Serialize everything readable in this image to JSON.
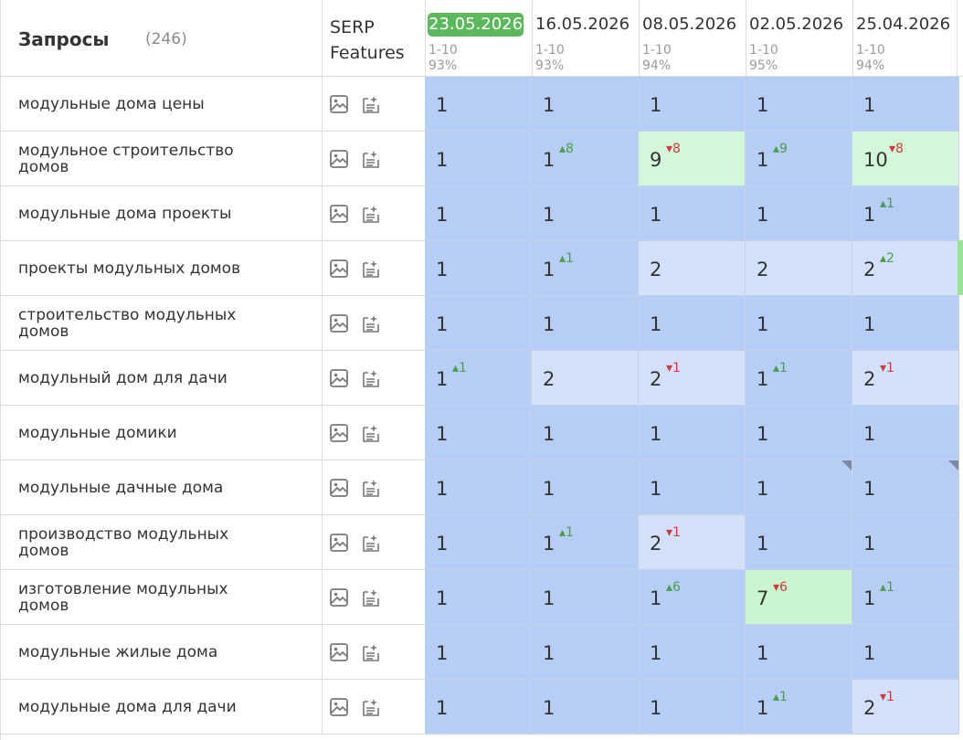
{
  "header": {
    "queries_label": "Запросы",
    "queries_count": "(246)",
    "serp_label_line1": "SERP",
    "serp_label_line2": "Features"
  },
  "dates": [
    {
      "label": "23.05.2026",
      "range": "1-10",
      "pct": "93%",
      "active": true
    },
    {
      "label": "16.05.2026",
      "range": "1-10",
      "pct": "93%",
      "active": false
    },
    {
      "label": "08.05.2026",
      "range": "1-10",
      "pct": "94%",
      "active": false
    },
    {
      "label": "02.05.2026",
      "range": "1-10",
      "pct": "95%",
      "active": false
    },
    {
      "label": "25.04.2026",
      "range": "1-10",
      "pct": "94%",
      "active": false
    }
  ],
  "serp_icons": [
    "image-icon",
    "featured-snippet-icon"
  ],
  "colors": {
    "pos1": "#b6cdf6",
    "pos1_alt": "#b0c6f2",
    "pos2": "#d2e0fa",
    "top10_green": "#d4f7d9",
    "top10_green_alt": "#c9f5d1",
    "up": "#4a9e4a",
    "down": "#d23a3a",
    "active_date": "#5cb85c"
  },
  "rows": [
    {
      "query": "модульные дома цены",
      "cells": [
        {
          "pos": "1",
          "delta": "",
          "dir": "",
          "bg": "pos1"
        },
        {
          "pos": "1",
          "delta": "",
          "dir": "",
          "bg": "pos1"
        },
        {
          "pos": "1",
          "delta": "",
          "dir": "",
          "bg": "pos1"
        },
        {
          "pos": "1",
          "delta": "",
          "dir": "",
          "bg": "pos1"
        },
        {
          "pos": "1",
          "delta": "",
          "dir": "",
          "bg": "pos1"
        }
      ]
    },
    {
      "query": "модульное строительство домов",
      "cells": [
        {
          "pos": "1",
          "delta": "",
          "dir": "",
          "bg": "pos1"
        },
        {
          "pos": "1",
          "delta": "8",
          "dir": "up",
          "bg": "pos1"
        },
        {
          "pos": "9",
          "delta": "8",
          "dir": "down",
          "bg": "top10_green"
        },
        {
          "pos": "1",
          "delta": "9",
          "dir": "up",
          "bg": "pos1"
        },
        {
          "pos": "10",
          "delta": "8",
          "dir": "down",
          "bg": "top10_green"
        }
      ]
    },
    {
      "query": "модульные дома проекты",
      "cells": [
        {
          "pos": "1",
          "delta": "",
          "dir": "",
          "bg": "pos1"
        },
        {
          "pos": "1",
          "delta": "",
          "dir": "",
          "bg": "pos1"
        },
        {
          "pos": "1",
          "delta": "",
          "dir": "",
          "bg": "pos1"
        },
        {
          "pos": "1",
          "delta": "",
          "dir": "",
          "bg": "pos1"
        },
        {
          "pos": "1",
          "delta": "1",
          "dir": "up",
          "bg": "pos1"
        }
      ]
    },
    {
      "query": "проекты модульных домов",
      "cells": [
        {
          "pos": "1",
          "delta": "",
          "dir": "",
          "bg": "pos1"
        },
        {
          "pos": "1",
          "delta": "1",
          "dir": "up",
          "bg": "pos1"
        },
        {
          "pos": "2",
          "delta": "",
          "dir": "",
          "bg": "pos2"
        },
        {
          "pos": "2",
          "delta": "",
          "dir": "",
          "bg": "pos2"
        },
        {
          "pos": "2",
          "delta": "2",
          "dir": "up",
          "bg": "pos2"
        }
      ]
    },
    {
      "query": "строительство модульных домов",
      "cells": [
        {
          "pos": "1",
          "delta": "",
          "dir": "",
          "bg": "pos1"
        },
        {
          "pos": "1",
          "delta": "",
          "dir": "",
          "bg": "pos1"
        },
        {
          "pos": "1",
          "delta": "",
          "dir": "",
          "bg": "pos1"
        },
        {
          "pos": "1",
          "delta": "",
          "dir": "",
          "bg": "pos1"
        },
        {
          "pos": "1",
          "delta": "",
          "dir": "",
          "bg": "pos1"
        }
      ]
    },
    {
      "query": "модульный дом для дачи",
      "cells": [
        {
          "pos": "1",
          "delta": "1",
          "dir": "up",
          "bg": "pos1"
        },
        {
          "pos": "2",
          "delta": "",
          "dir": "",
          "bg": "pos2"
        },
        {
          "pos": "2",
          "delta": "1",
          "dir": "down",
          "bg": "pos2"
        },
        {
          "pos": "1",
          "delta": "1",
          "dir": "up",
          "bg": "pos1"
        },
        {
          "pos": "2",
          "delta": "1",
          "dir": "down",
          "bg": "pos2"
        }
      ]
    },
    {
      "query": "модульные домики",
      "cells": [
        {
          "pos": "1",
          "delta": "",
          "dir": "",
          "bg": "pos1"
        },
        {
          "pos": "1",
          "delta": "",
          "dir": "",
          "bg": "pos1"
        },
        {
          "pos": "1",
          "delta": "",
          "dir": "",
          "bg": "pos1"
        },
        {
          "pos": "1",
          "delta": "",
          "dir": "",
          "bg": "pos1"
        },
        {
          "pos": "1",
          "delta": "",
          "dir": "",
          "bg": "pos1"
        }
      ]
    },
    {
      "query": "модульные дачные дома",
      "cells": [
        {
          "pos": "1",
          "delta": "",
          "dir": "",
          "bg": "pos1"
        },
        {
          "pos": "1",
          "delta": "",
          "dir": "",
          "bg": "pos1"
        },
        {
          "pos": "1",
          "delta": "",
          "dir": "",
          "bg": "pos1"
        },
        {
          "pos": "1",
          "delta": "",
          "dir": "",
          "bg": "pos1",
          "corner": true
        },
        {
          "pos": "1",
          "delta": "",
          "dir": "",
          "bg": "pos1",
          "corner": true
        }
      ]
    },
    {
      "query": "производство модульных домов",
      "cells": [
        {
          "pos": "1",
          "delta": "",
          "dir": "",
          "bg": "pos1"
        },
        {
          "pos": "1",
          "delta": "1",
          "dir": "up",
          "bg": "pos1"
        },
        {
          "pos": "2",
          "delta": "1",
          "dir": "down",
          "bg": "pos2"
        },
        {
          "pos": "1",
          "delta": "",
          "dir": "",
          "bg": "pos1"
        },
        {
          "pos": "1",
          "delta": "",
          "dir": "",
          "bg": "pos1"
        }
      ]
    },
    {
      "query": "изготовление модульных домов",
      "cells": [
        {
          "pos": "1",
          "delta": "",
          "dir": "",
          "bg": "pos1"
        },
        {
          "pos": "1",
          "delta": "",
          "dir": "",
          "bg": "pos1"
        },
        {
          "pos": "1",
          "delta": "6",
          "dir": "up",
          "bg": "pos1"
        },
        {
          "pos": "7",
          "delta": "6",
          "dir": "down",
          "bg": "top10_green_alt"
        },
        {
          "pos": "1",
          "delta": "1",
          "dir": "up",
          "bg": "pos1"
        }
      ]
    },
    {
      "query": "модульные жилые дома",
      "cells": [
        {
          "pos": "1",
          "delta": "",
          "dir": "",
          "bg": "pos1"
        },
        {
          "pos": "1",
          "delta": "",
          "dir": "",
          "bg": "pos1"
        },
        {
          "pos": "1",
          "delta": "",
          "dir": "",
          "bg": "pos1"
        },
        {
          "pos": "1",
          "delta": "",
          "dir": "",
          "bg": "pos1"
        },
        {
          "pos": "1",
          "delta": "",
          "dir": "",
          "bg": "pos1"
        }
      ]
    },
    {
      "query": "модульные дома для дачи",
      "cells": [
        {
          "pos": "1",
          "delta": "",
          "dir": "",
          "bg": "pos1"
        },
        {
          "pos": "1",
          "delta": "",
          "dir": "",
          "bg": "pos1"
        },
        {
          "pos": "1",
          "delta": "",
          "dir": "",
          "bg": "pos1"
        },
        {
          "pos": "1",
          "delta": "1",
          "dir": "up",
          "bg": "pos1"
        },
        {
          "pos": "2",
          "delta": "1",
          "dir": "down",
          "bg": "pos2"
        }
      ]
    }
  ]
}
